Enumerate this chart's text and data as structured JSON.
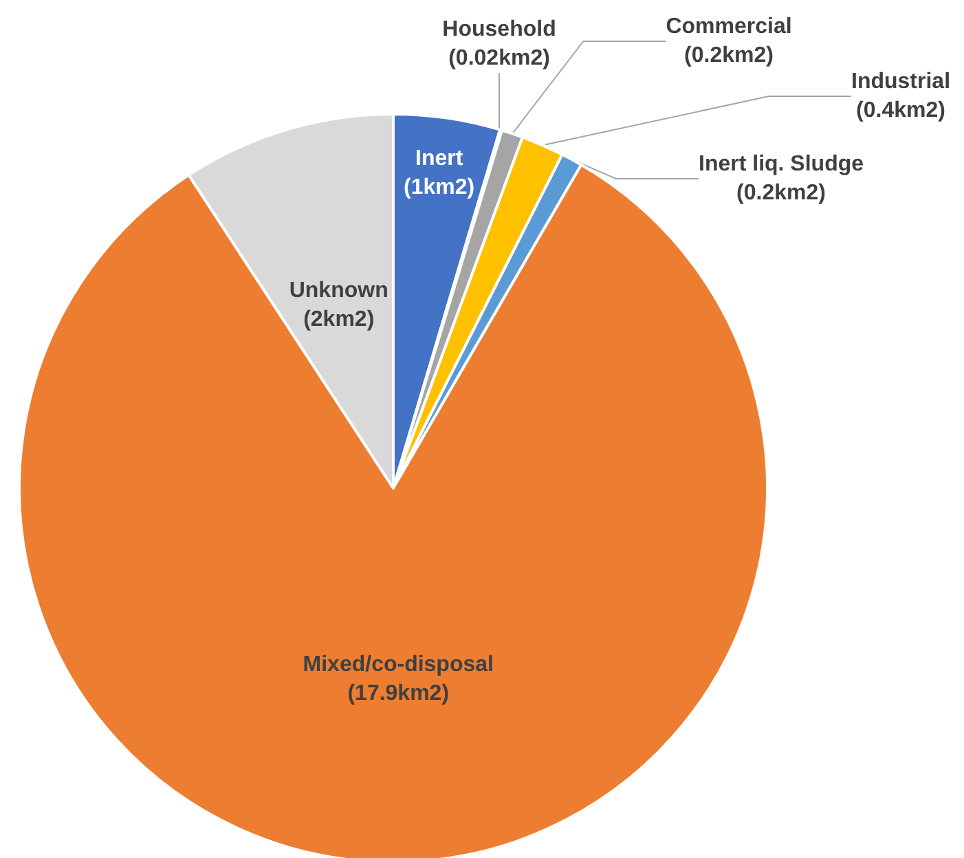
{
  "chart_data": {
    "type": "pie",
    "categories": [
      "Inert",
      "Household",
      "Commercial",
      "Industrial",
      "Inert liq. Sludge",
      "Mixed/co-disposal",
      "Unknown"
    ],
    "values": [
      1,
      0.02,
      0.2,
      0.4,
      0.2,
      17.9,
      2
    ],
    "value_labels": [
      "(1km2)",
      "(0.02km2)",
      "(0.2km2)",
      "(0.4km2)",
      "(0.2km2)",
      "(17.9km2)",
      "(2km2)"
    ],
    "colors": [
      "#4472c4",
      "#7f7f7f",
      "#a5a5a5",
      "#ffc000",
      "#5b9bd5",
      "#ed7d31",
      "#d9d9d9"
    ],
    "legend": false
  }
}
